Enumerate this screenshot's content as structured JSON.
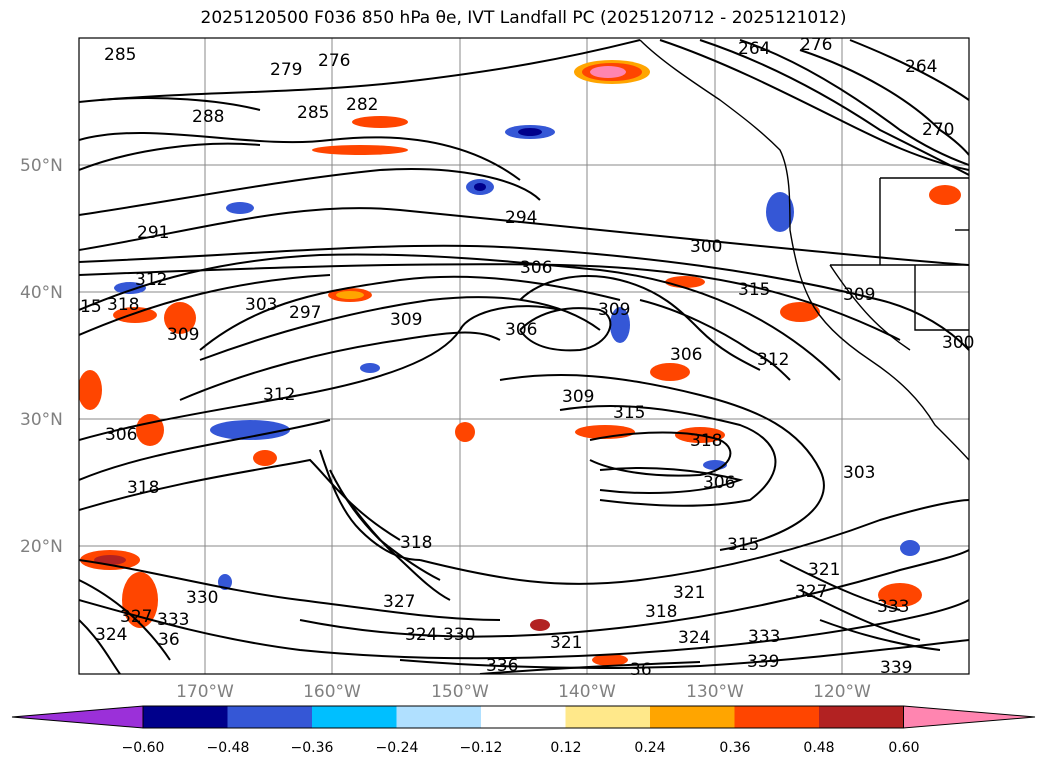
{
  "title": "2025120500 F036 850 hPa θe, IVT Landfall PC (2025120712 - 2025121012)",
  "axes": {
    "lon_ticks": [
      "170°W",
      "160°W",
      "150°W",
      "140°W",
      "130°W",
      "120°W"
    ],
    "lat_ticks": [
      "50°N",
      "40°N",
      "30°N",
      "20°N"
    ]
  },
  "colorbar": {
    "levels": [
      "−0.60",
      "−0.48",
      "−0.36",
      "−0.24",
      "−0.12",
      "0.12",
      "0.24",
      "0.36",
      "0.48",
      "0.60"
    ],
    "colors": [
      "#9b30d9",
      "#00008b",
      "#3557d6",
      "#00bfff",
      "#b0e0ff",
      "#ffffff",
      "#ffe88a",
      "#ffa500",
      "#ff4500",
      "#b22222",
      "#ff85b0"
    ]
  },
  "contour_labels": [
    {
      "text": "285"
    },
    {
      "text": "279"
    },
    {
      "text": "276"
    },
    {
      "text": "282"
    },
    {
      "text": "285"
    },
    {
      "text": "288"
    },
    {
      "text": "264"
    },
    {
      "text": "276"
    },
    {
      "text": "264"
    },
    {
      "text": "270"
    },
    {
      "text": "291"
    },
    {
      "text": "294"
    },
    {
      "text": "300"
    },
    {
      "text": "306"
    },
    {
      "text": "312"
    },
    {
      "text": "15"
    },
    {
      "text": "318"
    },
    {
      "text": "303"
    },
    {
      "text": "297"
    },
    {
      "text": "309"
    },
    {
      "text": "315"
    },
    {
      "text": "309"
    },
    {
      "text": "309"
    },
    {
      "text": "306"
    },
    {
      "text": "309"
    },
    {
      "text": "306"
    },
    {
      "text": "312"
    },
    {
      "text": "300"
    },
    {
      "text": "312"
    },
    {
      "text": "306"
    },
    {
      "text": "309"
    },
    {
      "text": "315"
    },
    {
      "text": "318"
    },
    {
      "text": "318"
    },
    {
      "text": "306"
    },
    {
      "text": "303"
    },
    {
      "text": "315"
    },
    {
      "text": "318"
    },
    {
      "text": "321"
    },
    {
      "text": "321"
    },
    {
      "text": "327"
    },
    {
      "text": "330"
    },
    {
      "text": "333"
    },
    {
      "text": "324"
    },
    {
      "text": "327"
    },
    {
      "text": "36"
    },
    {
      "text": "321"
    },
    {
      "text": "330"
    },
    {
      "text": "318"
    },
    {
      "text": "324"
    },
    {
      "text": "333"
    },
    {
      "text": "339"
    },
    {
      "text": "336"
    },
    {
      "text": "36"
    },
    {
      "text": "339"
    },
    {
      "text": "333"
    },
    {
      "text": "327"
    },
    {
      "text": "324"
    }
  ],
  "features": {
    "coastline": "black",
    "gridlines": true
  }
}
